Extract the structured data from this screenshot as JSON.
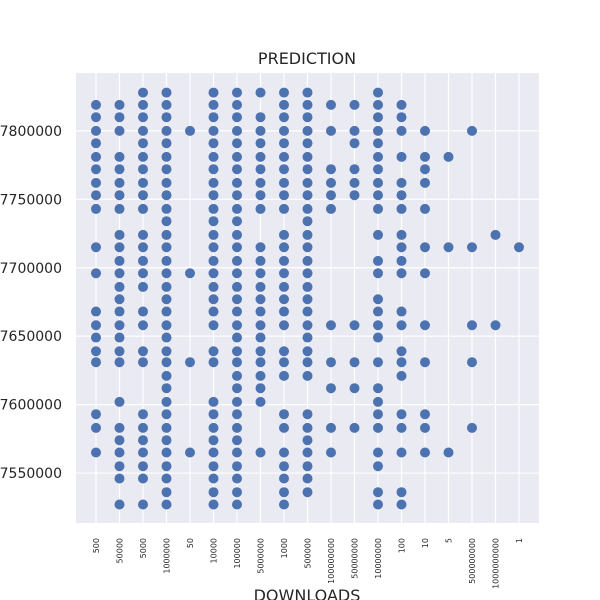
{
  "chart_data": {
    "type": "scatter",
    "title": "PREDICTION",
    "xlabel": "DOWNLOADS",
    "categories": [
      "500",
      "50000",
      "5000",
      "1000000",
      "50",
      "10000",
      "100000",
      "5000000",
      "1000",
      "500000",
      "100000000",
      "50000000",
      "10000000",
      "100",
      "10",
      "5",
      "500000000",
      "1000000000",
      "1"
    ],
    "values": [
      [
        7819000,
        7810000,
        7800000,
        7791000,
        7781000,
        7772000,
        7762000,
        7753000,
        7743000,
        7715000,
        7696000,
        7668000,
        7658000,
        7649000,
        7639000,
        7631000,
        7593000,
        7583000,
        7565000
      ],
      [
        7819000,
        7810000,
        7800000,
        7781000,
        7772000,
        7762000,
        7753000,
        7743000,
        7724000,
        7715000,
        7705000,
        7696000,
        7686000,
        7677000,
        7668000,
        7658000,
        7649000,
        7639000,
        7631000,
        7602000,
        7583000,
        7574000,
        7565000,
        7555000,
        7546000,
        7527000
      ],
      [
        7828000,
        7819000,
        7810000,
        7800000,
        7791000,
        7781000,
        7772000,
        7762000,
        7753000,
        7743000,
        7724000,
        7715000,
        7705000,
        7696000,
        7686000,
        7668000,
        7658000,
        7639000,
        7631000,
        7593000,
        7583000,
        7574000,
        7565000,
        7555000,
        7546000,
        7527000
      ],
      [
        7828000,
        7819000,
        7810000,
        7800000,
        7791000,
        7781000,
        7772000,
        7762000,
        7753000,
        7743000,
        7734000,
        7724000,
        7715000,
        7705000,
        7696000,
        7686000,
        7677000,
        7668000,
        7658000,
        7649000,
        7639000,
        7631000,
        7621000,
        7612000,
        7602000,
        7593000,
        7583000,
        7574000,
        7565000,
        7555000,
        7546000,
        7536000,
        7527000
      ],
      [
        7800000,
        7696000,
        7631000,
        7565000
      ],
      [
        7828000,
        7819000,
        7810000,
        7800000,
        7791000,
        7781000,
        7772000,
        7762000,
        7753000,
        7743000,
        7734000,
        7724000,
        7715000,
        7705000,
        7696000,
        7686000,
        7677000,
        7668000,
        7658000,
        7639000,
        7631000,
        7602000,
        7593000,
        7583000,
        7574000,
        7565000,
        7555000,
        7546000,
        7536000,
        7527000
      ],
      [
        7828000,
        7819000,
        7810000,
        7800000,
        7791000,
        7781000,
        7772000,
        7762000,
        7753000,
        7743000,
        7734000,
        7724000,
        7715000,
        7705000,
        7696000,
        7686000,
        7677000,
        7668000,
        7658000,
        7649000,
        7639000,
        7631000,
        7621000,
        7612000,
        7602000,
        7593000,
        7583000,
        7574000,
        7565000,
        7555000,
        7546000,
        7536000,
        7527000
      ],
      [
        7828000,
        7810000,
        7800000,
        7791000,
        7781000,
        7772000,
        7762000,
        7753000,
        7743000,
        7715000,
        7705000,
        7696000,
        7686000,
        7677000,
        7668000,
        7658000,
        7649000,
        7639000,
        7631000,
        7621000,
        7612000,
        7602000,
        7565000
      ],
      [
        7828000,
        7819000,
        7810000,
        7800000,
        7791000,
        7781000,
        7772000,
        7762000,
        7753000,
        7743000,
        7724000,
        7715000,
        7705000,
        7696000,
        7686000,
        7677000,
        7668000,
        7658000,
        7639000,
        7631000,
        7621000,
        7593000,
        7583000,
        7565000,
        7555000,
        7546000,
        7536000,
        7527000
      ],
      [
        7828000,
        7819000,
        7810000,
        7800000,
        7791000,
        7781000,
        7772000,
        7762000,
        7753000,
        7743000,
        7734000,
        7724000,
        7715000,
        7705000,
        7696000,
        7686000,
        7677000,
        7668000,
        7658000,
        7649000,
        7639000,
        7631000,
        7621000,
        7593000,
        7583000,
        7574000,
        7565000,
        7555000,
        7546000,
        7536000
      ],
      [
        7819000,
        7800000,
        7772000,
        7762000,
        7753000,
        7743000,
        7658000,
        7631000,
        7612000,
        7583000,
        7565000
      ],
      [
        7819000,
        7800000,
        7791000,
        7772000,
        7762000,
        7753000,
        7658000,
        7631000,
        7612000,
        7583000
      ],
      [
        7828000,
        7819000,
        7810000,
        7800000,
        7791000,
        7781000,
        7772000,
        7762000,
        7753000,
        7743000,
        7724000,
        7705000,
        7696000,
        7677000,
        7668000,
        7658000,
        7649000,
        7631000,
        7612000,
        7602000,
        7593000,
        7583000,
        7565000,
        7555000,
        7536000,
        7527000
      ],
      [
        7819000,
        7810000,
        7800000,
        7781000,
        7762000,
        7753000,
        7743000,
        7724000,
        7715000,
        7705000,
        7696000,
        7668000,
        7658000,
        7639000,
        7631000,
        7621000,
        7593000,
        7583000,
        7565000,
        7536000,
        7527000
      ],
      [
        7800000,
        7781000,
        7772000,
        7762000,
        7743000,
        7715000,
        7696000,
        7658000,
        7631000,
        7593000,
        7583000,
        7565000
      ],
      [
        7781000,
        7715000,
        7565000
      ],
      [
        7800000,
        7715000,
        7658000,
        7631000,
        7583000
      ],
      [
        7724000,
        7658000
      ],
      [
        7715000
      ]
    ],
    "color": "#4c72b0",
    "ylim": [
      7513500,
      7842300
    ],
    "yticks": [
      7550000,
      7600000,
      7650000,
      7700000,
      7750000,
      7800000
    ],
    "grid": true
  }
}
